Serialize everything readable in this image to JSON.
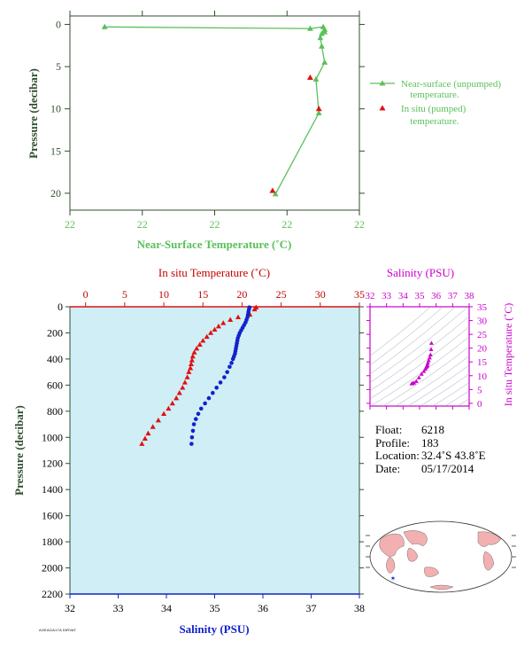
{
  "colors": {
    "green": "#5ac05a",
    "green_text": "#1a6b1a",
    "dark_green": "#2f4f2f",
    "red": "#e11111",
    "red_text": "#c40000",
    "blue": "#1122cc",
    "magenta": "#cc00cc",
    "plot_bg": "#cfeef6",
    "land": "#f3b0b0",
    "ocean": "#ffffff"
  },
  "chart_data": [
    {
      "type": "line",
      "name": "near-surface",
      "xlabel": "Near-Surface Temperature (˚C)",
      "ylabel": "Pressure (decibar)",
      "x_tick_labels": [
        "22",
        "22",
        "22",
        "22",
        "22"
      ],
      "y_ticks": [
        0,
        5,
        10,
        15,
        20
      ],
      "ylim": [
        22,
        -1
      ],
      "grid": false,
      "legend": [
        {
          "marker": "triangle-line",
          "lines": [
            "Near-surface (unpumped)",
            "temperature."
          ]
        },
        {
          "marker": "triangle",
          "lines": [
            "In situ (pumped)",
            "temperature."
          ]
        }
      ],
      "series": [
        {
          "name": "Near-surface (unpumped) temperature.",
          "color": "#5ac05a",
          "points": [
            {
              "xf": 0.12,
              "y": 0.3
            },
            {
              "xf": 0.83,
              "y": 0.5
            },
            {
              "xf": 0.875,
              "y": 0.3
            },
            {
              "xf": 0.88,
              "y": 0.6
            },
            {
              "xf": 0.88,
              "y": 0.9
            },
            {
              "xf": 0.87,
              "y": 1.1
            },
            {
              "xf": 0.865,
              "y": 1.6
            },
            {
              "xf": 0.87,
              "y": 2.6
            },
            {
              "xf": 0.88,
              "y": 4.5
            },
            {
              "xf": 0.85,
              "y": 6.5
            },
            {
              "xf": 0.86,
              "y": 10.5
            },
            {
              "xf": 0.71,
              "y": 20.1
            }
          ]
        },
        {
          "name": "In situ (pumped) temperature.",
          "color": "#e11111",
          "points": [
            {
              "xf": 0.83,
              "y": 6.3
            },
            {
              "xf": 0.86,
              "y": 10.0
            },
            {
              "xf": 0.7,
              "y": 19.7
            }
          ]
        }
      ]
    },
    {
      "type": "line",
      "name": "profile",
      "top_axis": {
        "label": "In situ Temperature (˚C)",
        "lim": [
          -2,
          35
        ],
        "ticks": [
          0,
          5,
          10,
          15,
          20,
          25,
          30,
          35
        ]
      },
      "bottom_axis": {
        "label": "Salinity (PSU)",
        "lim": [
          32,
          38
        ],
        "ticks": [
          32,
          33,
          34,
          35,
          36,
          37,
          38
        ]
      },
      "ylabel": "Pressure (decibar)",
      "ylim": [
        2200,
        0
      ],
      "y_ticks": [
        0,
        200,
        400,
        600,
        800,
        1000,
        1200,
        1400,
        1600,
        1800,
        2000,
        2200
      ],
      "series": [
        {
          "name": "In situ Temperature",
          "color": "#e11111",
          "marker": "triangle",
          "x": [
            21.8,
            21.6,
            21.0,
            19.5,
            18.5,
            17.6,
            17.0,
            16.5,
            16.0,
            15.5,
            15.0,
            14.6,
            14.2,
            13.9,
            13.7,
            13.6,
            13.5,
            13.4,
            13.2,
            13.0,
            12.7,
            12.4,
            12.0,
            11.6,
            11.1,
            10.6,
            10.0,
            9.3,
            8.6,
            8.0,
            7.6,
            7.2
          ],
          "y": [
            5,
            20,
            60,
            80,
            100,
            125,
            150,
            175,
            200,
            230,
            260,
            290,
            320,
            350,
            380,
            410,
            440,
            470,
            500,
            540,
            580,
            620,
            660,
            700,
            740,
            780,
            820,
            870,
            920,
            970,
            1010,
            1050
          ]
        },
        {
          "name": "Salinity",
          "color": "#1122cc",
          "marker": "circle",
          "x": [
            35.72,
            35.71,
            35.7,
            35.69,
            35.68,
            35.66,
            35.64,
            35.61,
            35.58,
            35.55,
            35.52,
            35.5,
            35.48,
            35.47,
            35.46,
            35.45,
            35.44,
            35.43,
            35.42,
            35.4,
            35.38,
            35.35,
            35.31,
            35.26,
            35.2,
            35.12,
            35.04,
            34.96,
            34.88,
            34.8,
            34.72,
            34.66,
            34.61,
            34.57,
            34.55,
            34.53,
            34.52
          ],
          "y": [
            5,
            20,
            40,
            60,
            80,
            100,
            120,
            140,
            160,
            180,
            200,
            220,
            240,
            260,
            280,
            300,
            320,
            340,
            360,
            380,
            400,
            430,
            460,
            500,
            540,
            580,
            620,
            660,
            700,
            740,
            780,
            820,
            860,
            900,
            950,
            1000,
            1050
          ]
        }
      ]
    },
    {
      "type": "scatter",
      "name": "ts-diagram",
      "xlabel": "Salinity (PSU)",
      "ylabel": "In situ Temperature (˚C)",
      "xlim": [
        32,
        38
      ],
      "ylim": [
        -1,
        35
      ],
      "x_ticks": [
        32,
        33,
        34,
        35,
        36,
        37,
        38
      ],
      "y_ticks": [
        0,
        5,
        10,
        15,
        20,
        25,
        30,
        35
      ],
      "color": "#cc00cc",
      "points": [
        [
          35.72,
          21.8
        ],
        [
          35.7,
          19.5
        ],
        [
          35.66,
          17.6
        ],
        [
          35.61,
          16.5
        ],
        [
          35.55,
          15.5
        ],
        [
          35.5,
          14.6
        ],
        [
          35.47,
          13.9
        ],
        [
          35.45,
          13.6
        ],
        [
          35.43,
          13.4
        ],
        [
          35.4,
          13.0
        ],
        [
          35.35,
          12.4
        ],
        [
          35.26,
          11.6
        ],
        [
          35.12,
          10.6
        ],
        [
          34.96,
          9.3
        ],
        [
          34.8,
          8.0
        ],
        [
          34.66,
          7.4
        ],
        [
          34.57,
          7.2
        ],
        [
          34.52,
          7.1
        ]
      ]
    }
  ],
  "info": {
    "float_label": "Float:",
    "float_value": "6218",
    "profile_label": "Profile:",
    "profile_value": "183",
    "location_label": "Location:",
    "location_value": "32.4˚S  43.8˚E",
    "date_label": "Date:",
    "date_value": "05/17/2014"
  },
  "map": {
    "marker_color": "#1122cc",
    "marker_symbol": "✶"
  },
  "footer_text": "AGEAGA17A DIRVAT"
}
